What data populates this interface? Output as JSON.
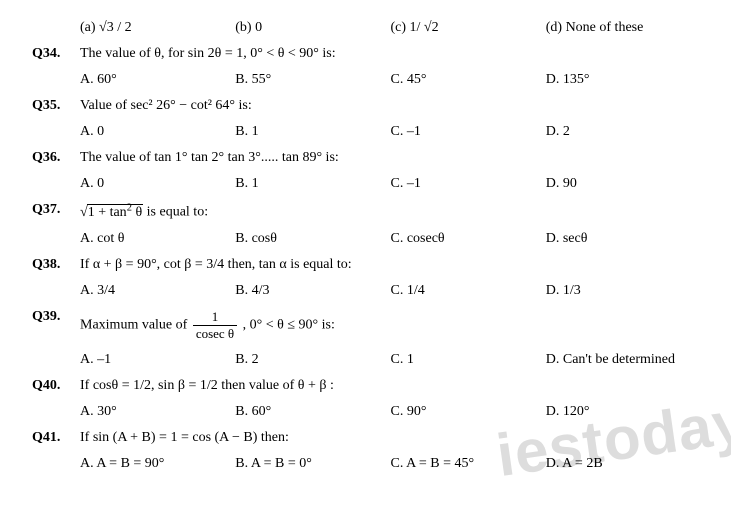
{
  "top_options": {
    "a": "(a) √3 / 2",
    "b": "(b) 0",
    "c": "(c) 1/ √2",
    "d": "(d) None of these"
  },
  "q34": {
    "num": "Q34.",
    "text": "The value of θ, for sin 2θ = 1, 0° < θ < 90° is:",
    "a": "A. 60°",
    "b": "B. 55°",
    "c": "C. 45°",
    "d": "D. 135°"
  },
  "q35": {
    "num": "Q35.",
    "text": "Value of sec² 26° − cot² 64° is:",
    "a": "A. 0",
    "b": "B. 1",
    "c": "C. –1",
    "d": "D. 2"
  },
  "q36": {
    "num": "Q36.",
    "text": "The value of tan 1° tan 2° tan 3°..... tan 89° is:",
    "a": "A. 0",
    "b": "B. 1",
    "c": "C. –1",
    "d": "D. 90"
  },
  "q37": {
    "num": "Q37.",
    "text_prefix": "",
    "text_suffix": " is equal to:",
    "a": "A. cot θ",
    "b": "B. cosθ",
    "c": "C. cosecθ",
    "d": "D. secθ"
  },
  "q38": {
    "num": "Q38.",
    "text": "If α + β = 90°, cot β = 3/4 then, tan α is equal to:",
    "a": "A. 3/4",
    "b": "B. 4/3",
    "c": "C. 1/4",
    "d": "D. 1/3"
  },
  "q39": {
    "num": "Q39.",
    "text_prefix": "Maximum value of ",
    "text_suffix": ", 0° < θ ≤ 90° is:",
    "frac_num": "1",
    "frac_den": "cosec θ",
    "a": "A. –1",
    "b": "B. 2",
    "c": "C. 1",
    "d": "D. Can't be determined"
  },
  "q40": {
    "num": "Q40.",
    "text": "If cosθ = 1/2, sin β = 1/2 then value of θ + β :",
    "a": "A. 30°",
    "b": "B. 60°",
    "c": "C. 90°",
    "d": "D. 120°"
  },
  "q41": {
    "num": "Q41.",
    "text": "If sin (A + B) = 1 = cos (A − B) then:",
    "a": "A. A = B = 90°",
    "b": "B. A = B = 0°",
    "c": "C. A = B = 45°",
    "d": "D. A = 2B"
  },
  "watermark": "iestoday."
}
